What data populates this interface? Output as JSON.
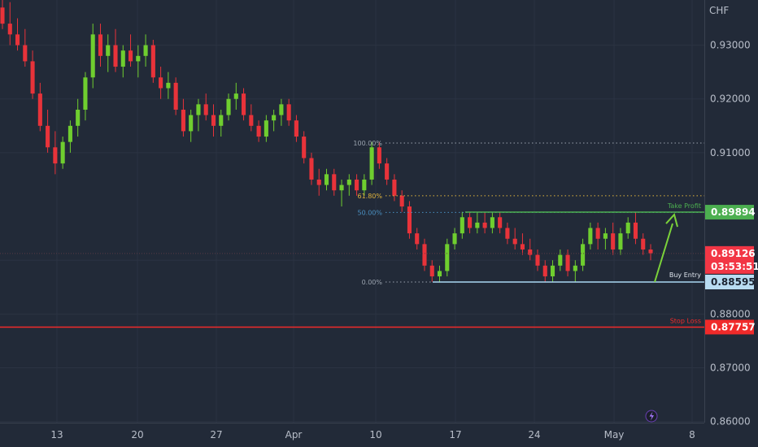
{
  "currency": "CHF",
  "colors": {
    "background": "#222a38",
    "bull": "#6fce2f",
    "bear": "#e8333a",
    "take_profit": "#4caf50",
    "buy_entry": "#a9d7f2",
    "stop_loss": "#f02a2a",
    "fib": "#9aa3ae",
    "fib_618": "#e0b33c"
  },
  "chart_data": {
    "type": "candlestick",
    "y_axis": {
      "ticks": [
        "0.93000",
        "0.92000",
        "0.91000",
        "0.89000",
        "0.88000",
        "0.87000",
        "0.86000"
      ],
      "ylim": [
        0.8598,
        0.9384
      ]
    },
    "x_axis": {
      "ticks": [
        "13",
        "20",
        "27",
        "Apr",
        "10",
        "17",
        "24",
        "May",
        "8"
      ]
    },
    "candles": [
      [
        0.937,
        0.94,
        0.933,
        0.934
      ],
      [
        0.934,
        0.938,
        0.93,
        0.932
      ],
      [
        0.932,
        0.935,
        0.929,
        0.93
      ],
      [
        0.93,
        0.933,
        0.926,
        0.927
      ],
      [
        0.927,
        0.929,
        0.92,
        0.921
      ],
      [
        0.921,
        0.923,
        0.914,
        0.915
      ],
      [
        0.915,
        0.918,
        0.91,
        0.911
      ],
      [
        0.911,
        0.914,
        0.906,
        0.908
      ],
      [
        0.908,
        0.913,
        0.907,
        0.912
      ],
      [
        0.912,
        0.916,
        0.91,
        0.915
      ],
      [
        0.915,
        0.92,
        0.913,
        0.918
      ],
      [
        0.918,
        0.925,
        0.916,
        0.924
      ],
      [
        0.924,
        0.934,
        0.922,
        0.932
      ],
      [
        0.932,
        0.934,
        0.926,
        0.928
      ],
      [
        0.928,
        0.932,
        0.925,
        0.93
      ],
      [
        0.93,
        0.933,
        0.925,
        0.926
      ],
      [
        0.926,
        0.93,
        0.924,
        0.929
      ],
      [
        0.929,
        0.932,
        0.926,
        0.927
      ],
      [
        0.927,
        0.93,
        0.924,
        0.928
      ],
      [
        0.928,
        0.932,
        0.926,
        0.93
      ],
      [
        0.93,
        0.931,
        0.923,
        0.924
      ],
      [
        0.924,
        0.926,
        0.92,
        0.922
      ],
      [
        0.922,
        0.925,
        0.92,
        0.923
      ],
      [
        0.923,
        0.924,
        0.917,
        0.918
      ],
      [
        0.918,
        0.92,
        0.913,
        0.914
      ],
      [
        0.914,
        0.918,
        0.912,
        0.917
      ],
      [
        0.917,
        0.92,
        0.914,
        0.919
      ],
      [
        0.919,
        0.921,
        0.916,
        0.917
      ],
      [
        0.917,
        0.919,
        0.913,
        0.915
      ],
      [
        0.915,
        0.918,
        0.913,
        0.917
      ],
      [
        0.917,
        0.921,
        0.916,
        0.92
      ],
      [
        0.92,
        0.923,
        0.918,
        0.921
      ],
      [
        0.921,
        0.922,
        0.916,
        0.917
      ],
      [
        0.917,
        0.919,
        0.914,
        0.915
      ],
      [
        0.915,
        0.916,
        0.912,
        0.913
      ],
      [
        0.913,
        0.917,
        0.912,
        0.916
      ],
      [
        0.916,
        0.918,
        0.914,
        0.917
      ],
      [
        0.917,
        0.92,
        0.915,
        0.919
      ],
      [
        0.919,
        0.92,
        0.915,
        0.916
      ],
      [
        0.916,
        0.917,
        0.912,
        0.913
      ],
      [
        0.913,
        0.914,
        0.908,
        0.909
      ],
      [
        0.909,
        0.91,
        0.904,
        0.905
      ],
      [
        0.905,
        0.907,
        0.902,
        0.904
      ],
      [
        0.904,
        0.907,
        0.903,
        0.906
      ],
      [
        0.906,
        0.907,
        0.902,
        0.903
      ],
      [
        0.903,
        0.905,
        0.9,
        0.904
      ],
      [
        0.904,
        0.906,
        0.902,
        0.905
      ],
      [
        0.905,
        0.906,
        0.902,
        0.903
      ],
      [
        0.903,
        0.906,
        0.902,
        0.905
      ],
      [
        0.905,
        0.912,
        0.904,
        0.911
      ],
      [
        0.911,
        0.912,
        0.907,
        0.908
      ],
      [
        0.908,
        0.909,
        0.904,
        0.905
      ],
      [
        0.905,
        0.906,
        0.901,
        0.902
      ],
      [
        0.902,
        0.903,
        0.899,
        0.9
      ],
      [
        0.9,
        0.901,
        0.894,
        0.895
      ],
      [
        0.895,
        0.896,
        0.892,
        0.893
      ],
      [
        0.893,
        0.894,
        0.888,
        0.889
      ],
      [
        0.889,
        0.89,
        0.886,
        0.887
      ],
      [
        0.887,
        0.889,
        0.886,
        0.888
      ],
      [
        0.888,
        0.894,
        0.887,
        0.893
      ],
      [
        0.893,
        0.896,
        0.892,
        0.895
      ],
      [
        0.895,
        0.899,
        0.894,
        0.898
      ],
      [
        0.898,
        0.899,
        0.895,
        0.896
      ],
      [
        0.896,
        0.899,
        0.895,
        0.897
      ],
      [
        0.897,
        0.899,
        0.895,
        0.896
      ],
      [
        0.896,
        0.899,
        0.895,
        0.898
      ],
      [
        0.898,
        0.899,
        0.895,
        0.896
      ],
      [
        0.896,
        0.897,
        0.893,
        0.894
      ],
      [
        0.894,
        0.896,
        0.892,
        0.893
      ],
      [
        0.893,
        0.895,
        0.891,
        0.892
      ],
      [
        0.892,
        0.894,
        0.89,
        0.891
      ],
      [
        0.891,
        0.892,
        0.888,
        0.889
      ],
      [
        0.889,
        0.89,
        0.886,
        0.887
      ],
      [
        0.887,
        0.89,
        0.886,
        0.889
      ],
      [
        0.889,
        0.892,
        0.888,
        0.891
      ],
      [
        0.891,
        0.892,
        0.887,
        0.888
      ],
      [
        0.888,
        0.89,
        0.886,
        0.889
      ],
      [
        0.889,
        0.894,
        0.888,
        0.893
      ],
      [
        0.893,
        0.897,
        0.892,
        0.896
      ],
      [
        0.896,
        0.897,
        0.892,
        0.894
      ],
      [
        0.894,
        0.896,
        0.892,
        0.895
      ],
      [
        0.895,
        0.897,
        0.891,
        0.892
      ],
      [
        0.892,
        0.896,
        0.891,
        0.895
      ],
      [
        0.895,
        0.898,
        0.894,
        0.897
      ],
      [
        0.897,
        0.899,
        0.893,
        0.894
      ],
      [
        0.894,
        0.895,
        0.891,
        0.892
      ],
      [
        0.892,
        0.893,
        0.89,
        0.8913
      ]
    ],
    "fibonacci": [
      {
        "label": "100.00%",
        "value": 0.9118
      },
      {
        "label": "61.80%",
        "value": 0.902
      },
      {
        "label": "50.00%",
        "value": 0.8989
      },
      {
        "label": "0.00%",
        "value": 0.88595
      }
    ],
    "levels": {
      "take_profit": {
        "label": "Take Profit",
        "value": 0.89894,
        "text": "0.89894"
      },
      "buy_entry": {
        "label": "Buy Entry",
        "value": 0.88595,
        "text": "0.88595"
      },
      "stop_loss": {
        "label": "Stop Loss",
        "value": 0.87757,
        "text": "0.87757"
      },
      "current": {
        "value": 0.89126,
        "text": "0.89126",
        "countdown": "03:53:51"
      }
    }
  }
}
